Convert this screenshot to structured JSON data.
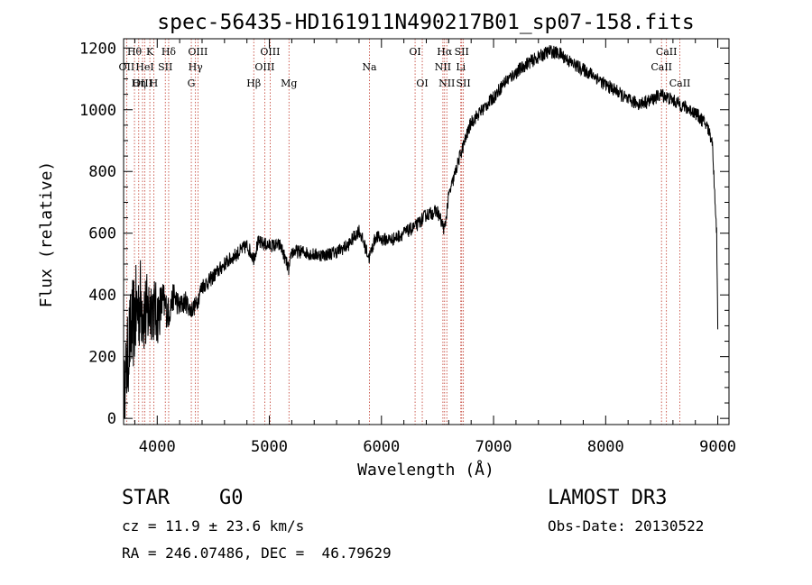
{
  "chart_data": {
    "type": "line",
    "title": "spec-56435-HD161911N490217B01_sp07-158.fits",
    "xlabel": "Wavelength (Å)",
    "ylabel": "Flux (relative)",
    "xlim": [
      3700,
      9100
    ],
    "ylim": [
      -20,
      1230
    ],
    "xticks": [
      4000,
      5000,
      6000,
      7000,
      8000,
      9000
    ],
    "yticks": [
      0,
      200,
      400,
      600,
      800,
      1000,
      1200
    ],
    "minor_x_step": 200,
    "minor_y_step": 50,
    "grid": false,
    "series": [
      {
        "name": "flux",
        "x": [
          3700,
          3750,
          3800,
          3850,
          3900,
          3950,
          4000,
          4050,
          4100,
          4150,
          4200,
          4250,
          4300,
          4350,
          4400,
          4450,
          4500,
          4600,
          4700,
          4800,
          4861,
          4900,
          5000,
          5100,
          5175,
          5200,
          5300,
          5400,
          5500,
          5600,
          5700,
          5800,
          5890,
          5950,
          6000,
          6100,
          6200,
          6300,
          6400,
          6500,
          6563,
          6600,
          6700,
          6800,
          6900,
          7000,
          7100,
          7200,
          7300,
          7400,
          7500,
          7600,
          7700,
          7800,
          7900,
          8000,
          8100,
          8200,
          8300,
          8400,
          8500,
          8600,
          8700,
          8800,
          8900,
          8950,
          8990,
          9000
        ],
        "values": [
          60,
          250,
          330,
          380,
          330,
          370,
          330,
          380,
          340,
          400,
          360,
          380,
          350,
          370,
          430,
          440,
          460,
          500,
          530,
          560,
          520,
          570,
          560,
          560,
          480,
          540,
          540,
          530,
          530,
          540,
          560,
          610,
          520,
          590,
          580,
          580,
          600,
          620,
          660,
          670,
          610,
          720,
          850,
          960,
          1000,
          1040,
          1090,
          1120,
          1150,
          1170,
          1190,
          1180,
          1150,
          1130,
          1110,
          1080,
          1060,
          1030,
          1020,
          1030,
          1050,
          1030,
          1010,
          990,
          950,
          900,
          600,
          300
        ],
        "noise": [
          120,
          150,
          160,
          150,
          140,
          120,
          100,
          70,
          55,
          45,
          40,
          35,
          30,
          30,
          28,
          26,
          25,
          24,
          24,
          24,
          24,
          24,
          22,
          22,
          22,
          22,
          22,
          22,
          22,
          22,
          22,
          22,
          22,
          22,
          22,
          22,
          22,
          22,
          22,
          22,
          22,
          22,
          22,
          22,
          22,
          22,
          22,
          22,
          22,
          22,
          22,
          22,
          22,
          22,
          22,
          22,
          22,
          22,
          22,
          22,
          22,
          22,
          22,
          22,
          22,
          22,
          22,
          22
        ]
      }
    ],
    "line_markers": [
      {
        "name": "Hθ",
        "wavelength": 3797,
        "row": 0
      },
      {
        "name": "OII",
        "wavelength": 3727,
        "row": 1
      },
      {
        "name": "OIII",
        "wavelength": 3869,
        "row": 2
      },
      {
        "name": "K",
        "wavelength": 3934,
        "row": 0
      },
      {
        "name": "HeI",
        "wavelength": 3889,
        "row": 1
      },
      {
        "name": "Hη",
        "wavelength": 3835,
        "row": 2
      },
      {
        "name": "Hδ",
        "wavelength": 4102,
        "row": 0
      },
      {
        "name": "SII",
        "wavelength": 4072,
        "row": 1
      },
      {
        "name": "H",
        "wavelength": 3969,
        "row": 2
      },
      {
        "name": "OIII",
        "wavelength": 4363,
        "row": 0
      },
      {
        "name": "Hγ",
        "wavelength": 4341,
        "row": 1
      },
      {
        "name": "G",
        "wavelength": 4304,
        "row": 2
      },
      {
        "name": "OIII",
        "wavelength": 5007,
        "row": 0
      },
      {
        "name": "OIII",
        "wavelength": 4959,
        "row": 1
      },
      {
        "name": "Hβ",
        "wavelength": 4861,
        "row": 2
      },
      {
        "name": "Mg",
        "wavelength": 5175,
        "row": 2
      },
      {
        "name": "Na",
        "wavelength": 5893,
        "row": 1
      },
      {
        "name": "OI",
        "wavelength": 6300,
        "row": 0
      },
      {
        "name": "OI",
        "wavelength": 6364,
        "row": 2
      },
      {
        "name": "Hα",
        "wavelength": 6563,
        "row": 0
      },
      {
        "name": "SII",
        "wavelength": 6716,
        "row": 0
      },
      {
        "name": "NII",
        "wavelength": 6548,
        "row": 1
      },
      {
        "name": "Li",
        "wavelength": 6708,
        "row": 1
      },
      {
        "name": "NII",
        "wavelength": 6583,
        "row": 2
      },
      {
        "name": "SII",
        "wavelength": 6731,
        "row": 2
      },
      {
        "name": "CaII",
        "wavelength": 8542,
        "row": 0
      },
      {
        "name": "CaII",
        "wavelength": 8498,
        "row": 1
      },
      {
        "name": "CaII",
        "wavelength": 8662,
        "row": 2
      }
    ]
  },
  "info": {
    "object_class": "STAR",
    "subclass": "G0",
    "survey": "LAMOST DR3",
    "redshift": "cz = 11.9 ± 23.6 km/s",
    "obs_date": "Obs-Date: 20130522",
    "coords": "RA = 246.07486, DEC =  46.79629"
  },
  "colors": {
    "line_marker": "#c0392b",
    "spectrum": "#000000"
  }
}
